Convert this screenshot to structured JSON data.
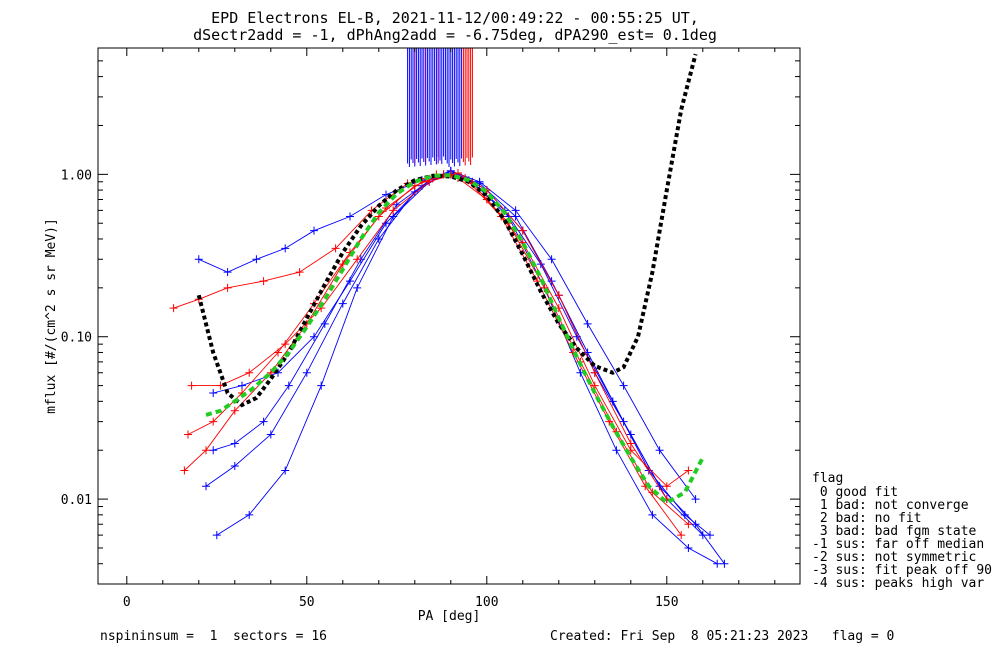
{
  "title_line1": "EPD Electrons EL-B, 2021-11-12/00:49:22 - 00:55:25 UT,",
  "title_line2": "dSectr2add = -1, dPhAng2add = -6.75deg, dPA290_est=   0.1deg",
  "footer": {
    "left": "nspininsum =  1  sectors = 16",
    "right": "Created: Fri Sep  8 05:21:23 2023   flag = 0"
  },
  "legend": {
    "title": "flag",
    "items": [
      " 0 good fit",
      " 1 bad: not converge",
      " 2 bad: no fit",
      " 3 bad: bad fgm state",
      "-1 sus: far off median",
      "-2 sus: not symmetric",
      "-3 sus: fit peak off 90",
      "-4 sus: peaks high var"
    ]
  },
  "colors": {
    "blue_series": "#0000ff",
    "red_series": "#ff0000",
    "purple_series": "#8800aa",
    "median_fit": "#000000",
    "symmetric_fit": "#22cc22"
  },
  "chart_data": {
    "type": "line",
    "xlabel": "PA [deg]",
    "ylabel": "mflux [#/(cm^2 s sr MeV)]",
    "xlim": [
      -8,
      187
    ],
    "ylim": [
      0.003,
      6.0
    ],
    "yscale": "log",
    "x_ticks": [
      0,
      50,
      100,
      150
    ],
    "x_tick_labels": [
      "0",
      "50",
      "100",
      "150"
    ],
    "y_ticks": [
      0.01,
      0.1,
      1.0
    ],
    "y_tick_labels": [
      "0.01",
      "0.10",
      "1.00"
    ],
    "grid": false,
    "legend_position": "right-outside",
    "series": [
      {
        "color": "blue",
        "x": [
          24,
          30,
          38,
          45,
          55,
          65,
          75,
          85,
          90,
          95,
          105,
          115,
          125,
          135,
          145,
          155,
          162
        ],
        "y": [
          0.02,
          0.022,
          0.03,
          0.05,
          0.12,
          0.3,
          0.65,
          0.95,
          1.05,
          0.92,
          0.6,
          0.28,
          0.1,
          0.04,
          0.015,
          0.008,
          0.006
        ]
      },
      {
        "color": "blue",
        "x": [
          22,
          30,
          40,
          50,
          60,
          70,
          80,
          88,
          92,
          100,
          110,
          120,
          130,
          140,
          150,
          160
        ],
        "y": [
          0.012,
          0.016,
          0.025,
          0.06,
          0.16,
          0.4,
          0.78,
          1.0,
          1.0,
          0.8,
          0.45,
          0.18,
          0.06,
          0.025,
          0.01,
          0.006
        ]
      },
      {
        "color": "blue",
        "x": [
          20,
          28,
          36,
          44,
          52,
          62,
          72,
          82,
          90,
          98,
          108,
          118,
          128,
          138,
          148,
          158,
          166
        ],
        "y": [
          0.3,
          0.25,
          0.3,
          0.35,
          0.45,
          0.55,
          0.75,
          0.92,
          1.0,
          0.88,
          0.55,
          0.22,
          0.08,
          0.03,
          0.012,
          0.007,
          0.004
        ]
      },
      {
        "color": "blue",
        "x": [
          25,
          34,
          44,
          54,
          64,
          74,
          84,
          90,
          96,
          106,
          116,
          126,
          136,
          146,
          156,
          164
        ],
        "y": [
          0.006,
          0.008,
          0.015,
          0.05,
          0.2,
          0.55,
          0.9,
          1.02,
          0.9,
          0.55,
          0.2,
          0.06,
          0.02,
          0.008,
          0.005,
          0.004
        ]
      },
      {
        "color": "blue",
        "x": [
          24,
          32,
          42,
          52,
          62,
          72,
          82,
          90,
          98,
          108,
          118,
          128,
          138,
          148,
          158
        ],
        "y": [
          0.045,
          0.05,
          0.06,
          0.1,
          0.22,
          0.5,
          0.85,
          1.05,
          0.9,
          0.6,
          0.3,
          0.12,
          0.05,
          0.02,
          0.01
        ]
      },
      {
        "color": "red",
        "x": [
          13,
          20,
          28,
          38,
          48,
          58,
          68,
          78,
          86,
          92,
          100,
          110,
          120,
          130,
          140,
          150,
          156
        ],
        "y": [
          0.15,
          0.17,
          0.2,
          0.22,
          0.25,
          0.35,
          0.6,
          0.88,
          1.0,
          0.95,
          0.7,
          0.38,
          0.15,
          0.05,
          0.02,
          0.012,
          0.015
        ]
      },
      {
        "color": "red",
        "x": [
          16,
          22,
          30,
          40,
          50,
          60,
          70,
          80,
          88,
          94,
          104,
          114,
          124,
          134,
          144,
          154
        ],
        "y": [
          0.015,
          0.02,
          0.035,
          0.06,
          0.12,
          0.28,
          0.55,
          0.85,
          1.0,
          0.95,
          0.55,
          0.22,
          0.08,
          0.03,
          0.012,
          0.006
        ]
      },
      {
        "color": "red",
        "x": [
          18,
          26,
          34,
          44,
          54,
          64,
          74,
          84,
          92,
          100,
          110,
          120,
          130,
          140,
          150
        ],
        "y": [
          0.05,
          0.05,
          0.06,
          0.09,
          0.15,
          0.3,
          0.6,
          0.9,
          1.02,
          0.8,
          0.45,
          0.18,
          0.06,
          0.022,
          0.01
        ]
      },
      {
        "color": "red",
        "x": [
          17,
          24,
          32,
          42,
          52,
          62,
          72,
          82,
          90,
          96,
          106,
          116,
          126,
          136,
          146,
          156
        ],
        "y": [
          0.025,
          0.03,
          0.045,
          0.08,
          0.16,
          0.33,
          0.62,
          0.9,
          1.0,
          0.88,
          0.5,
          0.2,
          0.07,
          0.026,
          0.011,
          0.007
        ]
      },
      {
        "name": "median fit",
        "color": "black-dotted",
        "x": [
          20,
          24,
          28,
          32,
          36,
          40,
          45,
          50,
          55,
          60,
          65,
          70,
          75,
          80,
          85,
          90,
          95,
          100,
          105,
          110,
          115,
          120,
          125,
          130,
          135,
          138,
          142,
          146,
          150,
          154,
          158
        ],
        "y": [
          0.18,
          0.08,
          0.045,
          0.038,
          0.042,
          0.055,
          0.08,
          0.13,
          0.21,
          0.33,
          0.48,
          0.64,
          0.8,
          0.92,
          0.98,
          0.97,
          0.9,
          0.74,
          0.52,
          0.32,
          0.19,
          0.12,
          0.085,
          0.066,
          0.06,
          0.065,
          0.1,
          0.25,
          0.8,
          2.5,
          5.5
        ]
      },
      {
        "name": "symmetric fit",
        "color": "green-dashed",
        "x": [
          22,
          26,
          30,
          35,
          40,
          45,
          50,
          55,
          60,
          65,
          70,
          75,
          80,
          85,
          90,
          95,
          100,
          105,
          110,
          115,
          120,
          125,
          130,
          135,
          140,
          145,
          150,
          155,
          160
        ],
        "y": [
          0.033,
          0.035,
          0.04,
          0.048,
          0.06,
          0.08,
          0.115,
          0.17,
          0.26,
          0.4,
          0.58,
          0.76,
          0.9,
          0.98,
          0.99,
          0.92,
          0.78,
          0.58,
          0.38,
          0.23,
          0.13,
          0.075,
          0.045,
          0.028,
          0.018,
          0.012,
          0.0095,
          0.011,
          0.018
        ]
      }
    ],
    "spikes": {
      "x_min": 78,
      "x_max": 96,
      "y_low": 1.2,
      "note": "vertical lines extending above plot top"
    }
  }
}
